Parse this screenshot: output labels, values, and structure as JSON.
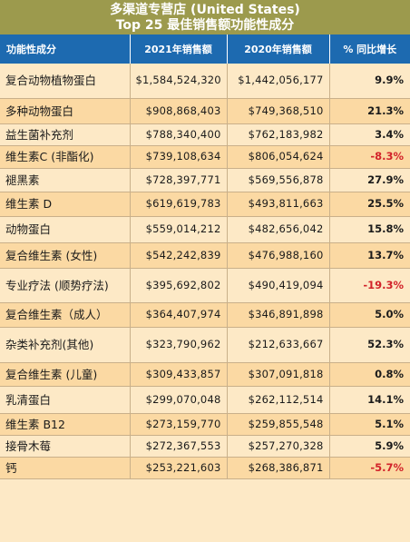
{
  "header": {
    "line1": "多渠道专营店 (United States)",
    "line2": "Top 25 最佳销售额功能性成分"
  },
  "columns": [
    "功能性成分",
    "2021年销售额",
    "2020年销售额",
    "% 同比增长"
  ],
  "rows": [
    {
      "name": "复合动物植物蛋白",
      "y2021": "$1,584,524,320",
      "y2020": "$1,442,056,177",
      "growth": "9.9%",
      "negative": false
    },
    {
      "name": "多种动物蛋白",
      "y2021": "$908,868,403",
      "y2020": "$749,368,510",
      "growth": "21.3%",
      "negative": false
    },
    {
      "name": "益生菌补充剂",
      "y2021": "$788,340,400",
      "y2020": "$762,183,982",
      "growth": "3.4%",
      "negative": false
    },
    {
      "name": "维生素C (非酯化)",
      "y2021": "$739,108,634",
      "y2020": "$806,054,624",
      "growth": "-8.3%",
      "negative": true
    },
    {
      "name": "褪黑素",
      "y2021": "$728,397,771",
      "y2020": "$569,556,878",
      "growth": "27.9%",
      "negative": false
    },
    {
      "name": "维生素 D",
      "y2021": "$619,619,783",
      "y2020": "$493,811,663",
      "growth": "25.5%",
      "negative": false
    },
    {
      "name": "动物蛋白",
      "y2021": "$559,014,212",
      "y2020": "$482,656,042",
      "growth": "15.8%",
      "negative": false
    },
    {
      "name": "复合维生素 (女性)",
      "y2021": "$542,242,839",
      "y2020": "$476,988,160",
      "growth": "13.7%",
      "negative": false
    },
    {
      "name": "专业疗法 (顺势疗法)",
      "y2021": "$395,692,802",
      "y2020": "$490,419,094",
      "growth": "-19.3%",
      "negative": true
    },
    {
      "name": "复合维生素（成人）",
      "y2021": "$364,407,974",
      "y2020": "$346,891,898",
      "growth": "5.0%",
      "negative": false
    },
    {
      "name": "杂类补充剂(其他)",
      "y2021": "$323,790,962",
      "y2020": "$212,633,667",
      "growth": "52.3%",
      "negative": false
    },
    {
      "name": "复合维生素 (儿童)",
      "y2021": "$309,433,857",
      "y2020": "$307,091,818",
      "growth": "0.8%",
      "negative": false
    },
    {
      "name": "乳清蛋白",
      "y2021": "$299,070,048",
      "y2020": "$262,112,514",
      "growth": "14.1%",
      "negative": false
    },
    {
      "name": "维生素 B12",
      "y2021": "$273,159,770",
      "y2020": "$259,855,548",
      "growth": "5.1%",
      "negative": false
    },
    {
      "name": "接骨木莓",
      "y2021": "$272,367,553",
      "y2020": "$257,270,328",
      "growth": "5.9%",
      "negative": false
    },
    {
      "name": "钙",
      "y2021": "$253,221,603",
      "y2020": "$268,386,871",
      "growth": "-5.7%",
      "negative": true
    }
  ],
  "colors": {
    "title_bg": "#9c9a4d",
    "header_bg": "#1d6ab0",
    "row_light": "#fde9c6",
    "row_dark": "#fbd9a3",
    "negative": "#d2232a"
  }
}
